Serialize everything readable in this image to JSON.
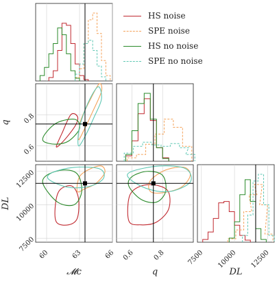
{
  "chart_data": {
    "type": "corner",
    "parameters": [
      {
        "key": "mc",
        "label": "𝓜c",
        "range": [
          59,
          66
        ],
        "ticks": [
          "60",
          "63",
          "66"
        ],
        "truth": 63.5
      },
      {
        "key": "q",
        "label": "q",
        "range": [
          0.5,
          1.0
        ],
        "ticks": [
          "0.6",
          "0.8"
        ],
        "truth": 0.74
      },
      {
        "key": "dl",
        "label": "DL",
        "range": [
          7200,
          13000
        ],
        "ticks": [
          "7500",
          "10000",
          "12500"
        ],
        "truth": 11600
      }
    ],
    "grid": true,
    "legend_position": "top-right",
    "series": [
      {
        "name": "HS noise",
        "color": "#c0282f",
        "dashed": false,
        "marg_mc": {
          "x": [
            60.4,
            60.8,
            61.2,
            61.6,
            62.0,
            62.4,
            62.8,
            63.2,
            63.6
          ],
          "y": [
            5,
            15,
            45,
            85,
            82,
            55,
            25,
            8,
            2
          ]
        },
        "marg_q": {
          "x": [
            0.58,
            0.62,
            0.66,
            0.7,
            0.74,
            0.78,
            0.82
          ],
          "y": [
            8,
            30,
            70,
            92,
            60,
            20,
            5
          ]
        },
        "marg_dl": {
          "x": [
            7800,
            8200,
            8600,
            9000,
            9400,
            9800,
            10200,
            10600,
            11000
          ],
          "y": [
            4,
            15,
            35,
            58,
            60,
            45,
            25,
            10,
            3
          ]
        },
        "c_mc_q": {
          "x": [
            61.1,
            61.9,
            62.7,
            62.8,
            62.2,
            61.4,
            60.9,
            61.1
          ],
          "y": [
            0.6,
            0.66,
            0.74,
            0.79,
            0.8,
            0.68,
            0.6,
            0.6
          ]
        },
        "c_mc_dl": {
          "x": [
            60.9,
            62.0,
            62.8,
            62.9,
            62.3,
            61.2,
            60.8,
            60.9
          ],
          "y": [
            8700,
            8500,
            9000,
            10500,
            11400,
            11100,
            10000,
            8700
          ]
        },
        "c_q_dl": {
          "x": [
            0.58,
            0.66,
            0.76,
            0.84,
            0.83,
            0.7,
            0.59,
            0.58
          ],
          "y": [
            8800,
            8500,
            8700,
            9700,
            11100,
            11500,
            10800,
            8800
          ]
        }
      },
      {
        "name": "SPE noise",
        "color": "#f4a259",
        "dashed": true,
        "marg_mc": {
          "x": [
            62.8,
            63.2,
            63.6,
            64.0,
            64.4,
            64.8,
            65.2,
            65.6
          ],
          "y": [
            5,
            18,
            55,
            90,
            100,
            70,
            30,
            8
          ]
        },
        "marg_q": {
          "x": [
            0.6,
            0.66,
            0.72,
            0.78,
            0.84,
            0.9,
            0.96
          ],
          "y": [
            5,
            10,
            25,
            40,
            62,
            50,
            22
          ]
        },
        "marg_dl": {
          "x": [
            9800,
            10400,
            11000,
            11400,
            11800,
            12200,
            12600
          ],
          "y": [
            5,
            18,
            45,
            70,
            85,
            55,
            12
          ]
        },
        "c_mc_q": {
          "x": [
            62.9,
            63.4,
            64.2,
            65.0,
            64.8,
            64.0,
            63.1,
            62.9
          ],
          "y": [
            0.64,
            0.7,
            0.82,
            0.95,
            1.0,
            0.9,
            0.76,
            0.64
          ]
        },
        "c_mc_dl": {
          "x": [
            62.8,
            63.5,
            64.5,
            65.3,
            65.0,
            64.0,
            63.0,
            62.8
          ],
          "y": [
            11000,
            11200,
            11600,
            12400,
            12900,
            12700,
            12100,
            11000
          ]
        },
        "c_q_dl": {
          "x": [
            0.72,
            0.8,
            0.92,
            0.98,
            0.94,
            0.82,
            0.72,
            0.72
          ],
          "y": [
            11000,
            10900,
            11300,
            12200,
            12800,
            12600,
            11800,
            11000
          ]
        }
      },
      {
        "name": "HS no noise",
        "color": "#2a8a2a",
        "dashed": false,
        "marg_mc": {
          "x": [
            59.6,
            60.0,
            60.4,
            60.8,
            61.2,
            61.6,
            62.0,
            62.4,
            62.8
          ],
          "y": [
            8,
            20,
            40,
            55,
            78,
            68,
            40,
            15,
            4
          ]
        },
        "marg_q": {
          "x": [
            0.58,
            0.62,
            0.66,
            0.7,
            0.74,
            0.78,
            0.82
          ],
          "y": [
            10,
            45,
            85,
            100,
            62,
            20,
            4
          ]
        },
        "marg_dl": {
          "x": [
            9800,
            10200,
            10600,
            11000,
            11400,
            11800,
            12200
          ],
          "y": [
            6,
            30,
            70,
            92,
            60,
            20,
            4
          ]
        },
        "c_mc_q": {
          "x": [
            59.7,
            60.8,
            62.0,
            63.0,
            62.6,
            61.0,
            59.9,
            59.7
          ],
          "y": [
            0.63,
            0.61,
            0.63,
            0.71,
            0.77,
            0.75,
            0.68,
            0.63
          ]
        },
        "c_mc_dl": {
          "x": [
            59.7,
            61.0,
            62.5,
            63.2,
            62.8,
            61.5,
            60.0,
            59.7
          ],
          "y": [
            11500,
            10200,
            10000,
            11000,
            12300,
            12600,
            12200,
            11500
          ]
        },
        "c_q_dl": {
          "x": [
            0.58,
            0.66,
            0.76,
            0.82,
            0.8,
            0.7,
            0.6,
            0.58
          ],
          "y": [
            11400,
            10400,
            10200,
            11000,
            12200,
            12500,
            12100,
            11400
          ]
        }
      },
      {
        "name": "SPE no noise",
        "color": "#5ec7b3",
        "dashed": true,
        "marg_mc": {
          "x": [
            62.8,
            63.2,
            63.6,
            64.0,
            64.4,
            64.8,
            65.2
          ],
          "y": [
            10,
            25,
            55,
            60,
            45,
            22,
            6
          ]
        },
        "marg_q": {
          "x": [
            0.58,
            0.64,
            0.7,
            0.76,
            0.82,
            0.88,
            0.94,
            0.98
          ],
          "y": [
            12,
            22,
            28,
            24,
            22,
            26,
            20,
            10
          ]
        },
        "marg_dl": {
          "x": [
            10800,
            11200,
            11600,
            12000,
            12400,
            12800
          ],
          "y": [
            10,
            40,
            90,
            100,
            55,
            10
          ]
        },
        "c_mc_q": {
          "x": [
            62.9,
            63.5,
            64.3,
            65.0,
            64.7,
            63.8,
            63.0,
            62.9
          ],
          "y": [
            0.6,
            0.66,
            0.78,
            0.9,
            0.98,
            0.88,
            0.72,
            0.6
          ]
        },
        "c_mc_dl": {
          "x": [
            60.2,
            62.0,
            64.0,
            65.2,
            64.8,
            62.5,
            60.5,
            60.2
          ],
          "y": [
            11900,
            11300,
            11400,
            12000,
            12700,
            12800,
            12400,
            11900
          ]
        },
        "c_q_dl": {
          "x": [
            0.58,
            0.7,
            0.85,
            0.98,
            0.95,
            0.78,
            0.6,
            0.58
          ],
          "y": [
            12000,
            11200,
            11000,
            11700,
            12700,
            12900,
            12500,
            12000
          ]
        }
      }
    ]
  }
}
